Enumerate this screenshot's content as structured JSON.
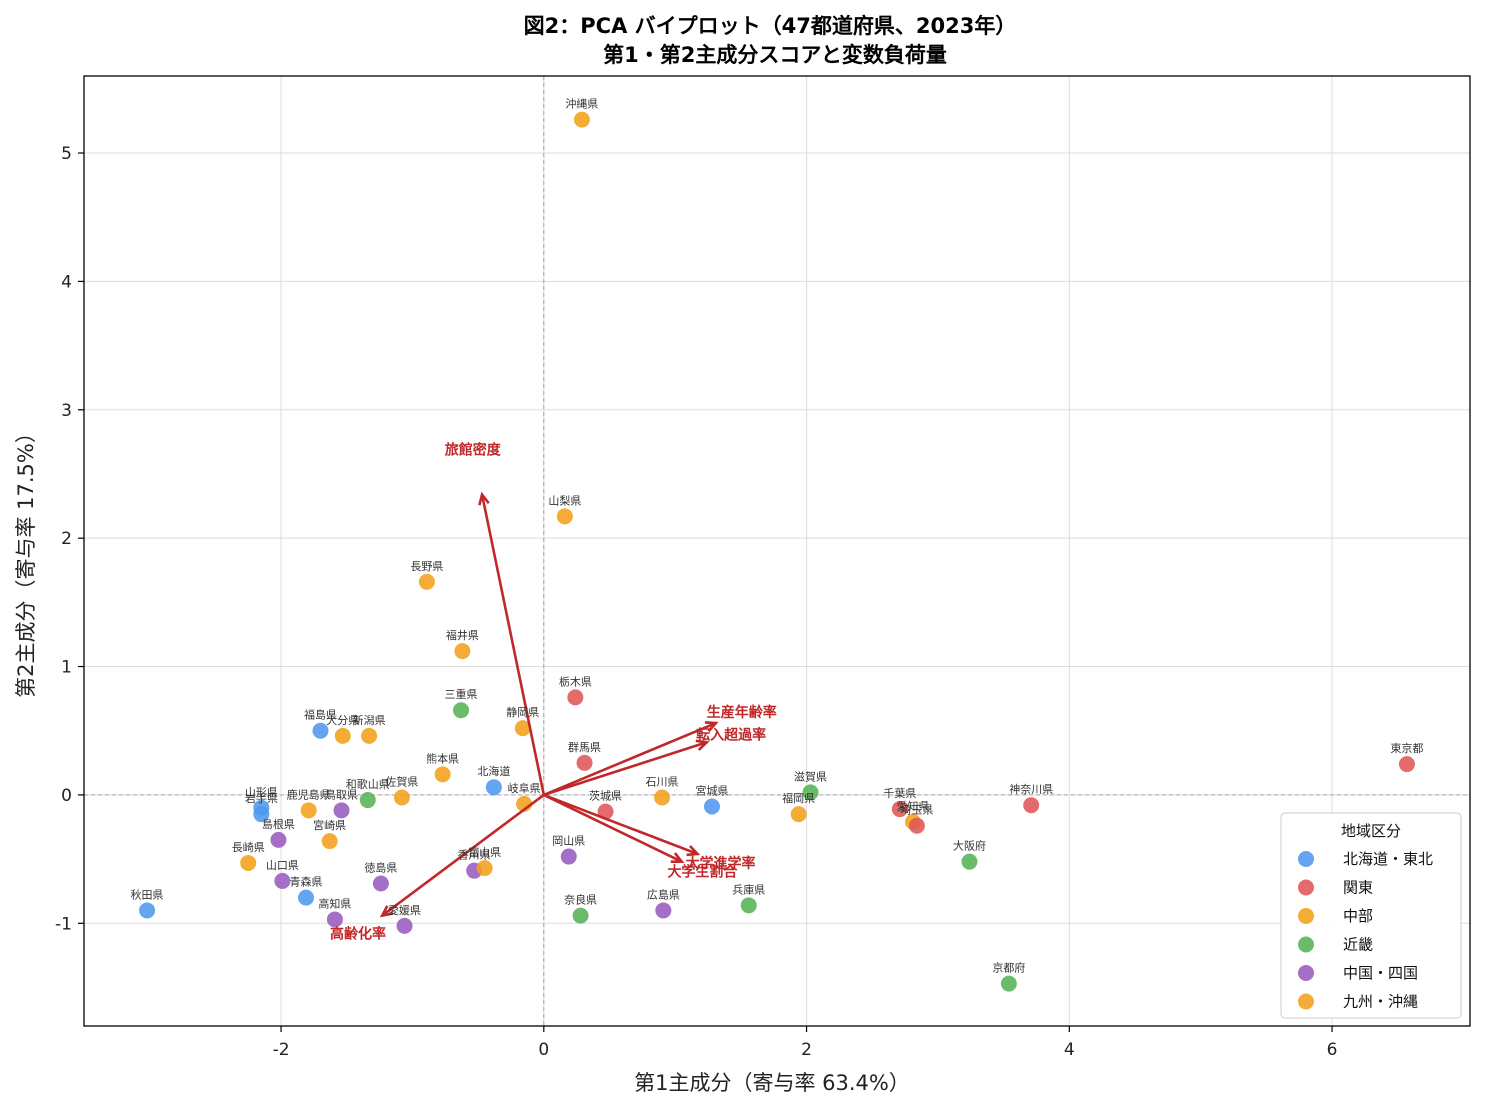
{
  "chart_data": {
    "type": "scatter",
    "title": [
      "図2：PCA バイプロット（47都道府県、2023年）",
      "第1・第2主成分スコアと変数負荷量"
    ],
    "xlabel": "第1主成分（寄与率 63.4%）",
    "ylabel": "第2主成分（寄与率 17.5%）",
    "xlim": [
      -3.5,
      7.05
    ],
    "ylim": [
      -1.8,
      5.6
    ],
    "xticks": [
      -2,
      0,
      2,
      4,
      6
    ],
    "yticks": [
      -1,
      0,
      1,
      2,
      3,
      4,
      5
    ],
    "xtick_labels": [
      "-2",
      "0",
      "2",
      "4",
      "6"
    ],
    "ytick_labels": [
      "-1",
      "0",
      "1",
      "2",
      "3",
      "4",
      "5"
    ],
    "grid": true,
    "legend": {
      "title": "地域区分",
      "position": "lower-right",
      "entries": [
        {
          "name": "北海道・東北",
          "color": "#4e97ee"
        },
        {
          "name": "関東",
          "color": "#e05656"
        },
        {
          "name": "中部",
          "color": "#f2a11b"
        },
        {
          "name": "近畿",
          "color": "#55b355"
        },
        {
          "name": "中国・四国",
          "color": "#9a5bbf"
        },
        {
          "name": "九州・沖縄",
          "color": "#f2a11b"
        }
      ]
    },
    "points": [
      {
        "label": "沖縄県",
        "x": 0.29,
        "y": 5.26,
        "group": "九州・沖縄"
      },
      {
        "label": "山梨県",
        "x": 0.16,
        "y": 2.17,
        "group": "中部"
      },
      {
        "label": "長野県",
        "x": -0.89,
        "y": 1.66,
        "group": "中部"
      },
      {
        "label": "福井県",
        "x": -0.62,
        "y": 1.12,
        "group": "中部"
      },
      {
        "label": "栃木県",
        "x": 0.24,
        "y": 0.76,
        "group": "関東"
      },
      {
        "label": "三重県",
        "x": -0.63,
        "y": 0.66,
        "group": "近畿"
      },
      {
        "label": "静岡県",
        "x": -0.16,
        "y": 0.52,
        "group": "中部"
      },
      {
        "label": "福島県",
        "x": -1.7,
        "y": 0.5,
        "group": "北海道・東北"
      },
      {
        "label": "大分県",
        "x": -1.53,
        "y": 0.46,
        "group": "九州・沖縄"
      },
      {
        "label": "新潟県",
        "x": -1.33,
        "y": 0.46,
        "group": "中部"
      },
      {
        "label": "群馬県",
        "x": 0.31,
        "y": 0.25,
        "group": "関東"
      },
      {
        "label": "熊本県",
        "x": -0.77,
        "y": 0.16,
        "group": "九州・沖縄"
      },
      {
        "label": "北海道",
        "x": -0.38,
        "y": 0.06,
        "group": "北海道・東北"
      },
      {
        "label": "和歌山県",
        "x": -1.34,
        "y": -0.04,
        "group": "近畿"
      },
      {
        "label": "佐賀県",
        "x": -1.08,
        "y": -0.02,
        "group": "九州・沖縄"
      },
      {
        "label": "岐阜県",
        "x": -0.15,
        "y": -0.07,
        "group": "中部"
      },
      {
        "label": "石川県",
        "x": 0.9,
        "y": -0.02,
        "group": "中部"
      },
      {
        "label": "茨城県",
        "x": 0.47,
        "y": -0.13,
        "group": "関東"
      },
      {
        "label": "宮城県",
        "x": 1.28,
        "y": -0.09,
        "group": "北海道・東北"
      },
      {
        "label": "滋賀県",
        "x": 2.03,
        "y": 0.02,
        "group": "近畿"
      },
      {
        "label": "福岡県",
        "x": 1.94,
        "y": -0.15,
        "group": "九州・沖縄"
      },
      {
        "label": "千葉県",
        "x": 2.71,
        "y": -0.11,
        "group": "関東"
      },
      {
        "label": "愛知県",
        "x": 2.81,
        "y": -0.21,
        "group": "中部"
      },
      {
        "label": "埼玉県",
        "x": 2.84,
        "y": -0.24,
        "group": "関東"
      },
      {
        "label": "神奈川県",
        "x": 3.71,
        "y": -0.08,
        "group": "関東"
      },
      {
        "label": "東京都",
        "x": 6.57,
        "y": 0.24,
        "group": "関東"
      },
      {
        "label": "大阪府",
        "x": 3.24,
        "y": -0.52,
        "group": "近畿"
      },
      {
        "label": "京都府",
        "x": 3.54,
        "y": -1.47,
        "group": "近畿"
      },
      {
        "label": "兵庫県",
        "x": 1.56,
        "y": -0.86,
        "group": "近畿"
      },
      {
        "label": "広島県",
        "x": 0.91,
        "y": -0.9,
        "group": "中国・四国"
      },
      {
        "label": "奈良県",
        "x": 0.28,
        "y": -0.94,
        "group": "近畿"
      },
      {
        "label": "岡山県",
        "x": 0.19,
        "y": -0.48,
        "group": "中国・四国"
      },
      {
        "label": "香川県",
        "x": -0.53,
        "y": -0.59,
        "group": "中国・四国"
      },
      {
        "label": "富山県",
        "x": -0.45,
        "y": -0.57,
        "group": "中部"
      },
      {
        "label": "徳島県",
        "x": -1.24,
        "y": -0.69,
        "group": "中国・四国"
      },
      {
        "label": "愛媛県",
        "x": -1.06,
        "y": -1.02,
        "group": "中国・四国"
      },
      {
        "label": "高知県",
        "x": -1.59,
        "y": -0.97,
        "group": "中国・四国"
      },
      {
        "label": "宮崎県",
        "x": -1.63,
        "y": -0.36,
        "group": "九州・沖縄"
      },
      {
        "label": "鳥取県",
        "x": -1.54,
        "y": -0.12,
        "group": "中国・四国"
      },
      {
        "label": "鹿児島県",
        "x": -1.79,
        "y": -0.12,
        "group": "九州・沖縄"
      },
      {
        "label": "島根県",
        "x": -2.02,
        "y": -0.35,
        "group": "中国・四国"
      },
      {
        "label": "山口県",
        "x": -1.99,
        "y": -0.67,
        "group": "中国・四国"
      },
      {
        "label": "青森県",
        "x": -1.81,
        "y": -0.8,
        "group": "北海道・東北"
      },
      {
        "label": "長崎県",
        "x": -2.25,
        "y": -0.53,
        "group": "九州・沖縄"
      },
      {
        "label": "山形県",
        "x": -2.15,
        "y": -0.1,
        "group": "北海道・東北"
      },
      {
        "label": "岩手県",
        "x": -2.15,
        "y": -0.15,
        "group": "北海道・東北"
      },
      {
        "label": "秋田県",
        "x": -3.02,
        "y": -0.9,
        "group": "北海道・東北"
      }
    ],
    "vectors": [
      {
        "label": "旅館密度",
        "x": -0.47,
        "y": 2.34
      },
      {
        "label": "生産年齢率",
        "x": 1.31,
        "y": 0.56
      },
      {
        "label": "転入超過率",
        "x": 1.24,
        "y": 0.41
      },
      {
        "label": "大学生割合",
        "x": 1.05,
        "y": -0.52
      },
      {
        "label": "大学進学率",
        "x": 1.17,
        "y": -0.46
      },
      {
        "label": "高齢化率",
        "x": -1.23,
        "y": -0.94
      }
    ]
  }
}
